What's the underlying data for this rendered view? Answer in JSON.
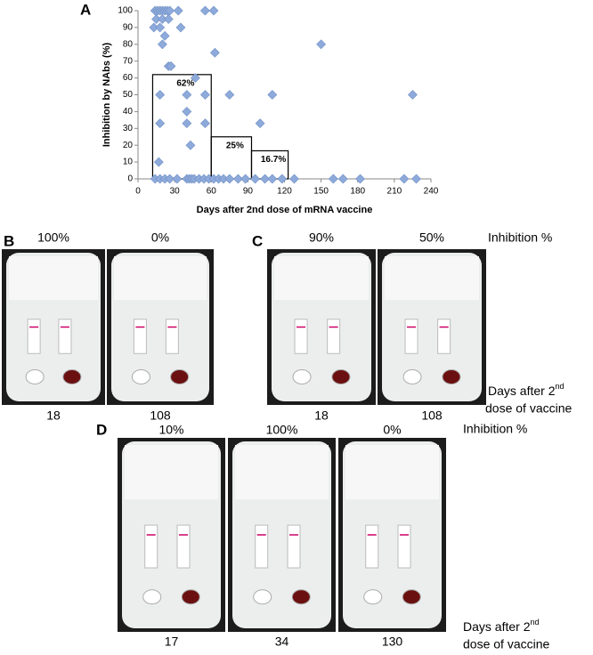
{
  "chart_data": {
    "type": "scatter",
    "panel_label": "A",
    "x_label": "Days after 2nd dose of mRNA vaccine",
    "y_label": "Inhibition by NAbs (%)",
    "x": [
      14,
      16,
      18,
      20,
      22,
      24,
      26,
      33,
      55,
      62,
      15,
      20,
      25,
      13,
      18,
      35,
      22,
      20,
      150,
      63,
      25,
      27,
      47,
      18,
      40,
      55,
      75,
      110,
      225,
      40,
      18,
      40,
      55,
      100,
      43,
      17,
      14,
      18,
      22,
      26,
      32,
      40,
      42,
      44,
      46,
      50,
      54,
      58,
      62,
      66,
      70,
      75,
      82,
      88,
      96,
      104,
      110,
      118,
      128,
      160,
      168,
      182,
      218,
      228
    ],
    "values": [
      100,
      100,
      100,
      100,
      100,
      100,
      100,
      100,
      100,
      100,
      95,
      95,
      95,
      90,
      90,
      90,
      85,
      80,
      80,
      75,
      67,
      67,
      60,
      50,
      50,
      50,
      50,
      50,
      50,
      40,
      33,
      33,
      33,
      33,
      20,
      10,
      0,
      0,
      0,
      0,
      0,
      0,
      0,
      0,
      0,
      0,
      0,
      0,
      0,
      0,
      0,
      0,
      0,
      0,
      0,
      0,
      0,
      0,
      0,
      0,
      0,
      0,
      0,
      0
    ],
    "color": "#8eaadb",
    "bars": {
      "edges": [
        [
          12,
          60
        ],
        [
          60,
          93
        ],
        [
          93,
          123
        ]
      ],
      "values": [
        62,
        25,
        16.7
      ],
      "value_labels": [
        "62%",
        "25%",
        "16.7%"
      ]
    },
    "xlim": [
      0,
      240
    ],
    "xticks": [
      0,
      30,
      60,
      90,
      120,
      150,
      180,
      210,
      240
    ],
    "ylim": [
      0,
      100
    ],
    "yticks": [
      0,
      10,
      20,
      30,
      40,
      50,
      60,
      70,
      80,
      90,
      100
    ]
  },
  "panels": [
    {
      "label": "B",
      "inhibition": [
        "100%",
        "0%"
      ],
      "days": [
        18,
        108
      ]
    },
    {
      "label": "C",
      "inhibition": [
        "90%",
        "50%"
      ],
      "days": [
        18,
        108
      ]
    },
    {
      "label": "D",
      "inhibition": [
        "10%",
        "100%",
        "0%"
      ],
      "days": [
        17,
        34,
        130
      ]
    }
  ],
  "side_labels": {
    "inhibition": "Inhibition %",
    "days": "Days after 2",
    "days_sup": "nd",
    "days_rest": "dose of vaccine"
  }
}
